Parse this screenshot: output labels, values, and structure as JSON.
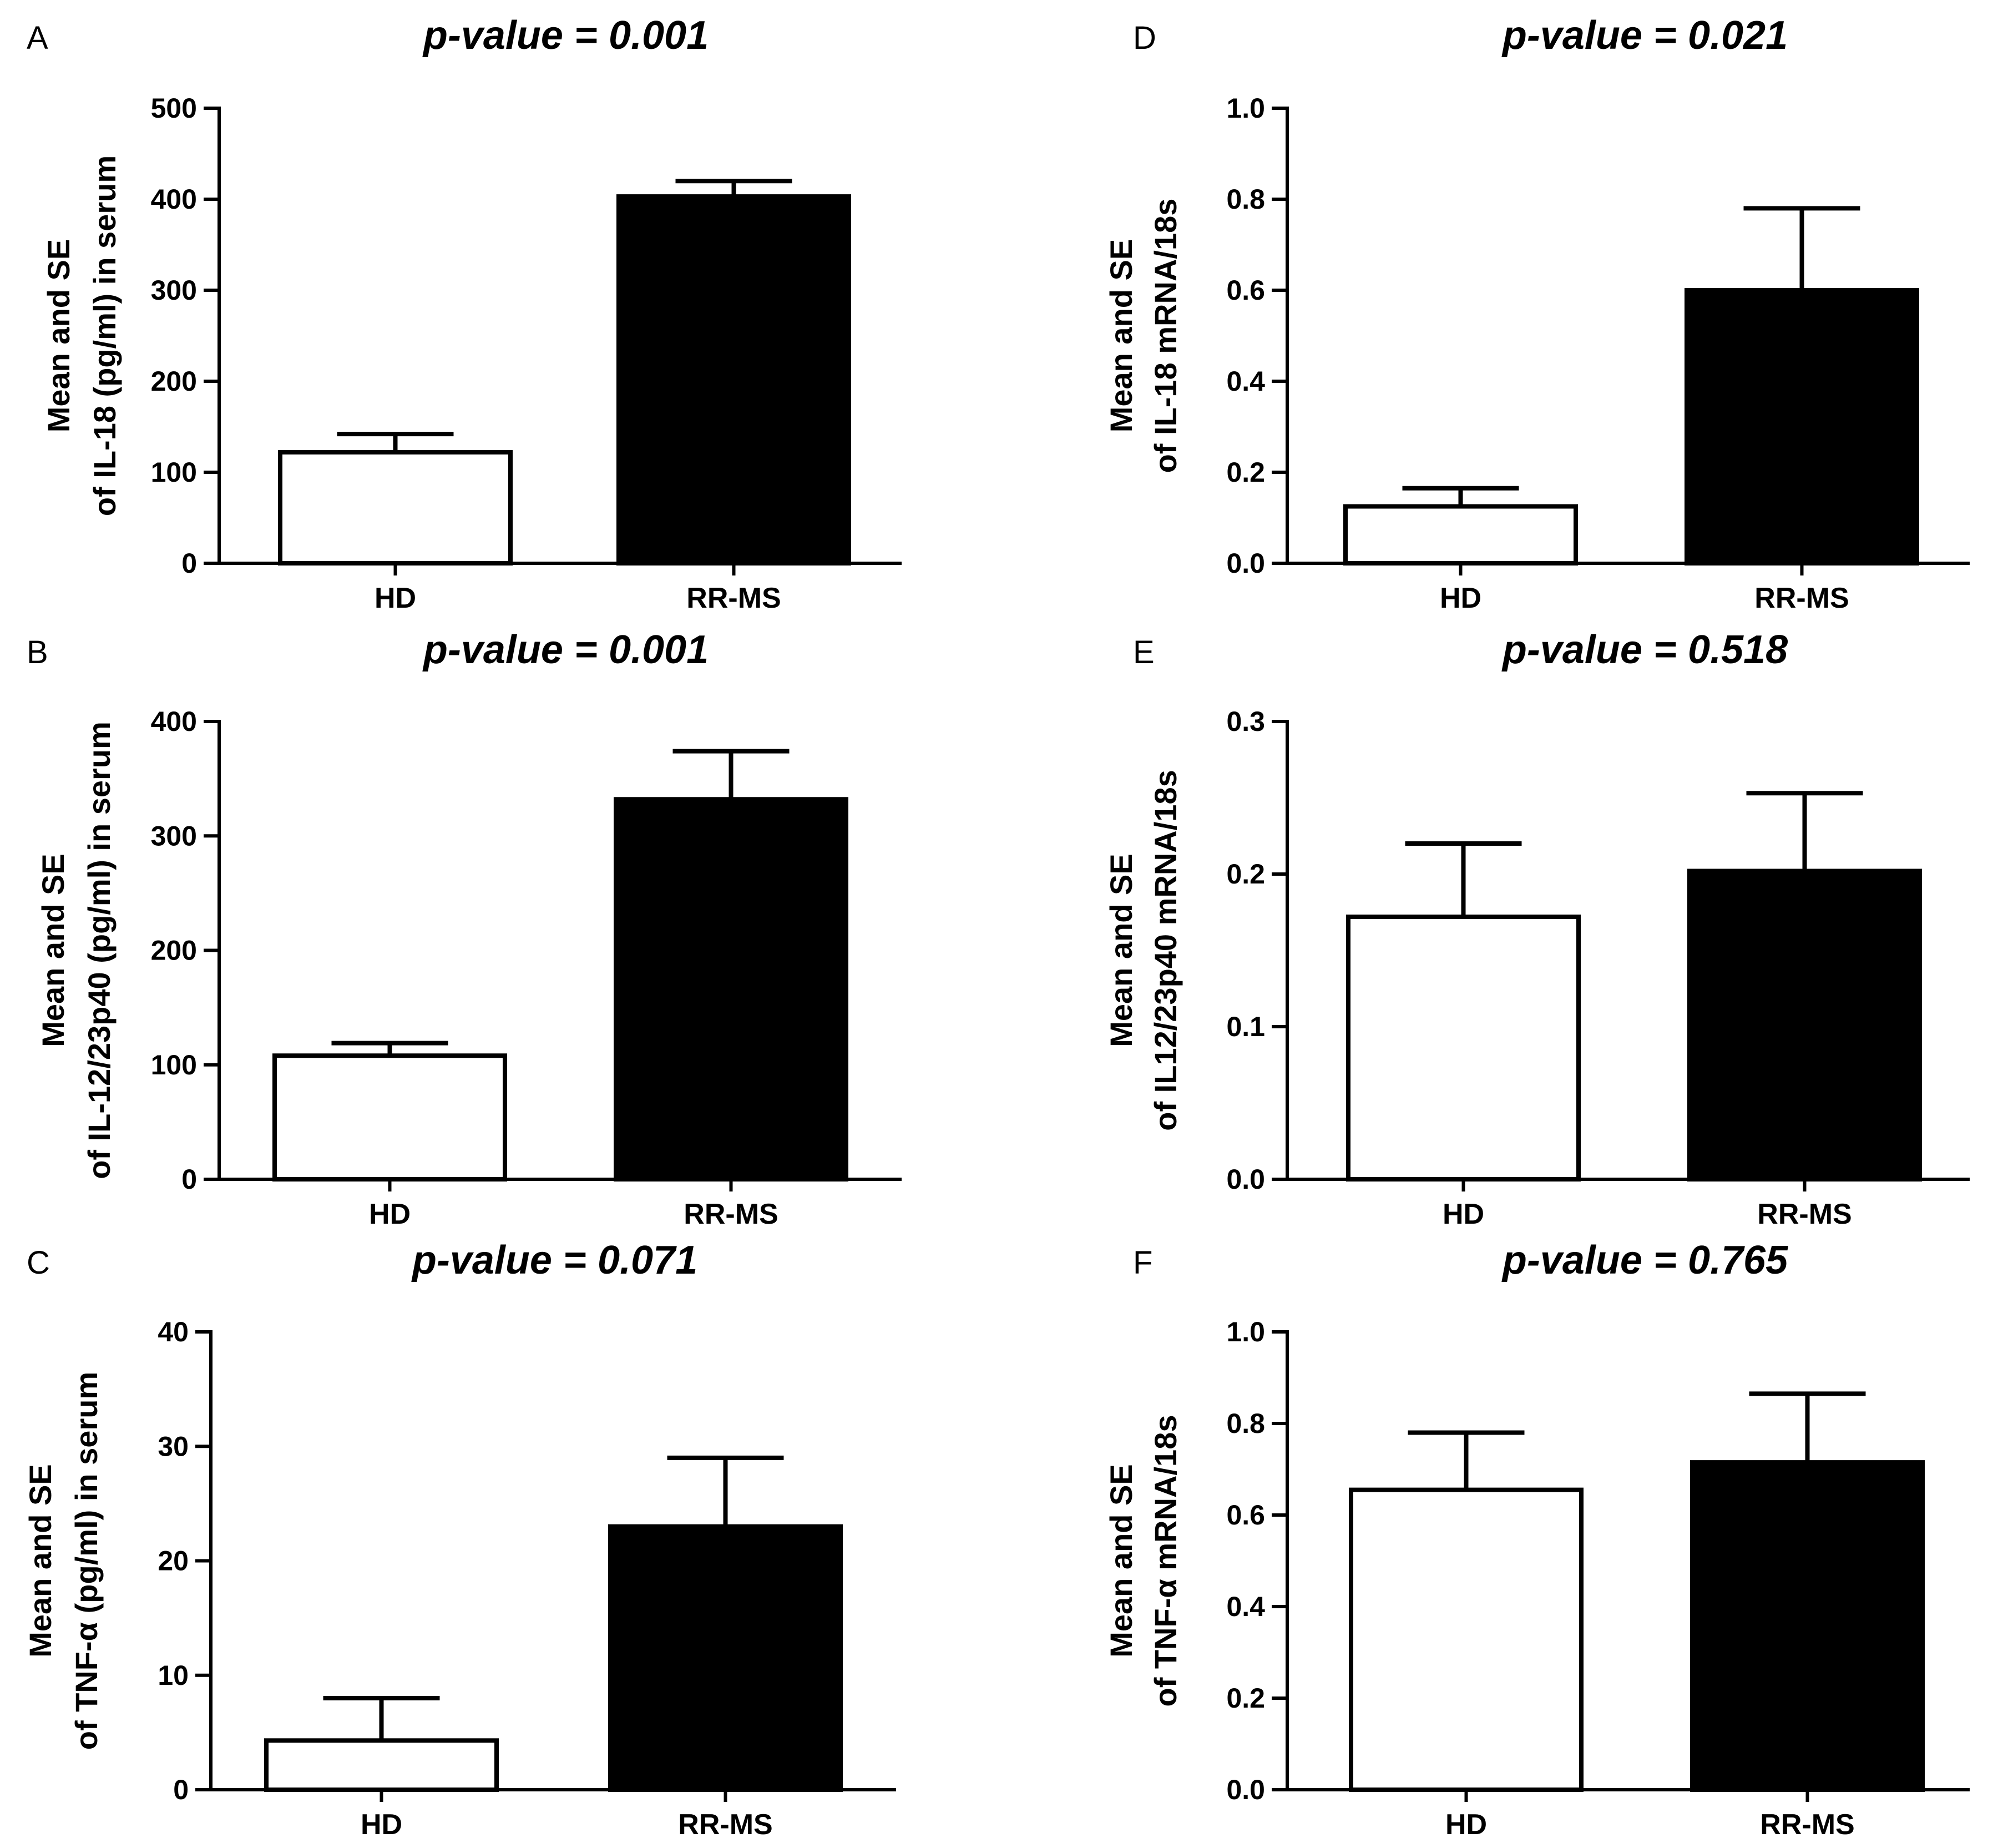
{
  "chart_data": [
    {
      "type": "bar",
      "panel": "A",
      "title": "p-value = 0.001",
      "categories": [
        "HD",
        "RR-MS"
      ],
      "values": [
        122,
        403
      ],
      "errors": [
        20,
        17
      ],
      "colors": [
        "#ffffff",
        "#000000"
      ],
      "ylabel_line1": "Mean and SE",
      "ylabel_line2": "of IL-18 (pg/ml) in serum",
      "ylim": [
        0,
        500
      ],
      "yticks": [
        0,
        100,
        200,
        300,
        400,
        500
      ],
      "yticklabels": [
        "0",
        "100",
        "200",
        "300",
        "400",
        "500"
      ]
    },
    {
      "type": "bar",
      "panel": "B",
      "title": "p-value = 0.001",
      "categories": [
        "HD",
        "RR-MS"
      ],
      "values": [
        108,
        332
      ],
      "errors": [
        11,
        42
      ],
      "colors": [
        "#ffffff",
        "#000000"
      ],
      "ylabel_line1": "Mean and SE",
      "ylabel_line2": "of IL-12/23p40 (pg/ml) in serum",
      "ylim": [
        0,
        400
      ],
      "yticks": [
        0,
        100,
        200,
        300,
        400
      ],
      "yticklabels": [
        "0",
        "100",
        "200",
        "300",
        "400"
      ]
    },
    {
      "type": "bar",
      "panel": "C",
      "title": "p-value = 0.071",
      "categories": [
        "HD",
        "RR-MS"
      ],
      "values": [
        4.3,
        23
      ],
      "errors": [
        3.7,
        6
      ],
      "colors": [
        "#ffffff",
        "#000000"
      ],
      "ylabel_line1": "Mean and SE",
      "ylabel_line2": "of TNF-α (pg/ml) in serum",
      "ylim": [
        0,
        40
      ],
      "yticks": [
        0,
        10,
        20,
        30,
        40
      ],
      "yticklabels": [
        "0",
        "10",
        "20",
        "30",
        "40"
      ]
    },
    {
      "type": "bar",
      "panel": "D",
      "title": "p-value = 0.021",
      "categories": [
        "HD",
        "RR-MS"
      ],
      "values": [
        0.125,
        0.6
      ],
      "errors": [
        0.04,
        0.18
      ],
      "colors": [
        "#ffffff",
        "#000000"
      ],
      "ylabel_line1": "Mean and SE",
      "ylabel_line2": "of IL-18 mRNA/18s",
      "ylim": [
        0,
        1.0
      ],
      "yticks": [
        0,
        0.2,
        0.4,
        0.6,
        0.8,
        1.0
      ],
      "yticklabels": [
        "0.0",
        "0.2",
        "0.4",
        "0.6",
        "0.8",
        "1.0"
      ]
    },
    {
      "type": "bar",
      "panel": "E",
      "title": "p-value = 0.518",
      "categories": [
        "HD",
        "RR-MS"
      ],
      "values": [
        0.172,
        0.202
      ],
      "errors": [
        0.048,
        0.051
      ],
      "colors": [
        "#ffffff",
        "#000000"
      ],
      "ylabel_line1": "Mean and SE",
      "ylabel_line2": "of IL12/23p40 mRNA/18s",
      "ylim": [
        0,
        0.3
      ],
      "yticks": [
        0,
        0.1,
        0.2,
        0.3
      ],
      "yticklabels": [
        "0.0",
        "0.1",
        "0.2",
        "0.3"
      ]
    },
    {
      "type": "bar",
      "panel": "F",
      "title": "p-value = 0.765",
      "categories": [
        "HD",
        "RR-MS"
      ],
      "values": [
        0.655,
        0.715
      ],
      "errors": [
        0.125,
        0.15
      ],
      "colors": [
        "#ffffff",
        "#000000"
      ],
      "ylabel_line1": "Mean and SE",
      "ylabel_line2": "of TNF-α mRNA/18s",
      "ylim": [
        0,
        1.0
      ],
      "yticks": [
        0,
        0.2,
        0.4,
        0.6,
        0.8,
        1.0
      ],
      "yticklabels": [
        "0.0",
        "0.2",
        "0.4",
        "0.6",
        "0.8",
        "1.0"
      ]
    }
  ]
}
